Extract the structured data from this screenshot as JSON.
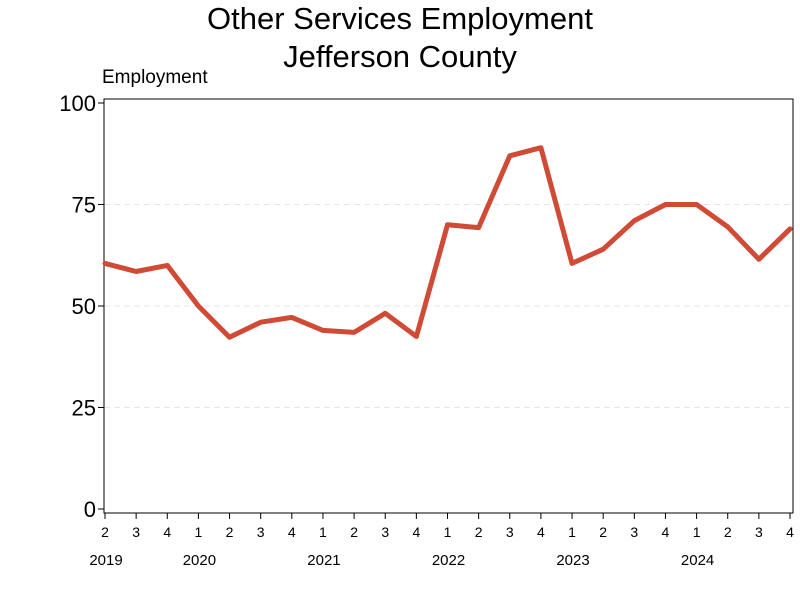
{
  "chart_data": {
    "type": "line",
    "title": "Other Services Employment",
    "subtitle": "Jefferson County",
    "ylabel": "Employment",
    "xlabel": "",
    "ylim": [
      0,
      100
    ],
    "yticks": [
      0,
      25,
      50,
      75,
      100
    ],
    "grid": "horizontal dashed",
    "x": [
      "2019 Q2",
      "2019 Q3",
      "2019 Q4",
      "2020 Q1",
      "2020 Q2",
      "2020 Q3",
      "2020 Q4",
      "2021 Q1",
      "2021 Q2",
      "2021 Q3",
      "2021 Q4",
      "2022 Q1",
      "2022 Q2",
      "2022 Q3",
      "2022 Q4",
      "2023 Q1",
      "2023 Q2",
      "2023 Q3",
      "2023 Q4",
      "2024 Q1",
      "2024 Q2",
      "2024 Q3",
      "2024 Q4"
    ],
    "quarter_labels": [
      "2",
      "3",
      "4",
      "1",
      "2",
      "3",
      "4",
      "1",
      "2",
      "3",
      "4",
      "1",
      "2",
      "3",
      "4",
      "1",
      "2",
      "3",
      "4",
      "1",
      "2",
      "3",
      "4"
    ],
    "year_labels": [
      {
        "year": "2019",
        "index": 0
      },
      {
        "year": "2020",
        "index": 3
      },
      {
        "year": "2021",
        "index": 7
      },
      {
        "year": "2022",
        "index": 11
      },
      {
        "year": "2023",
        "index": 15
      },
      {
        "year": "2024",
        "index": 19
      }
    ],
    "series": [
      {
        "values": [
          60.5,
          58.5,
          60,
          50,
          42.3,
          46,
          47.2,
          44,
          43.5,
          48.2,
          42.5,
          70,
          69.3,
          87,
          89,
          60.5,
          64,
          71,
          75,
          75,
          69.5,
          61.5,
          69
        ],
        "color": "#d04a35"
      }
    ]
  }
}
